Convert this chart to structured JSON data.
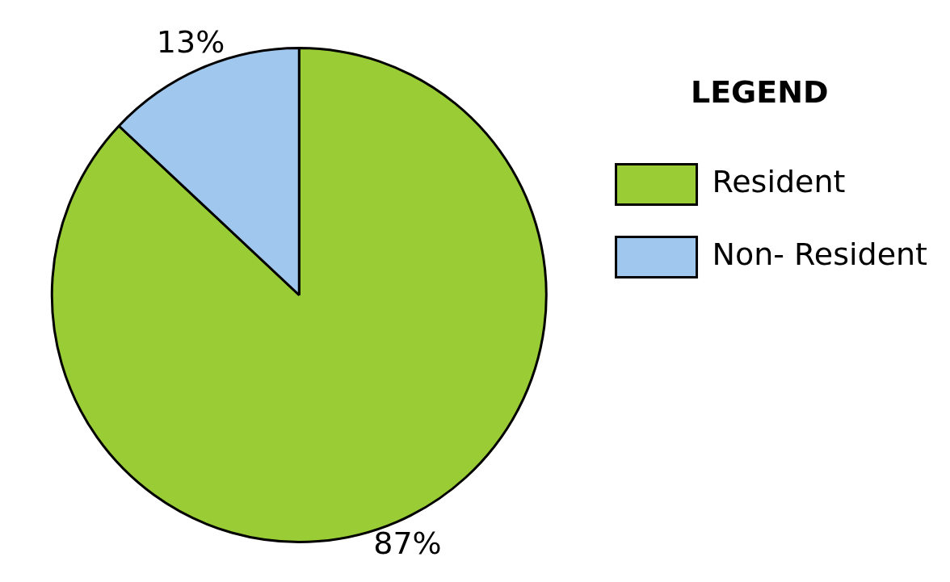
{
  "chart_data": {
    "type": "pie",
    "legend_title": "LEGEND",
    "legend": "right",
    "categories": [
      "Resident",
      "Non- Resident"
    ],
    "values": [
      87,
      13
    ],
    "colors": [
      "#9acd35",
      "#a0c8ee"
    ],
    "value_labels": [
      "87%",
      "13%"
    ]
  }
}
